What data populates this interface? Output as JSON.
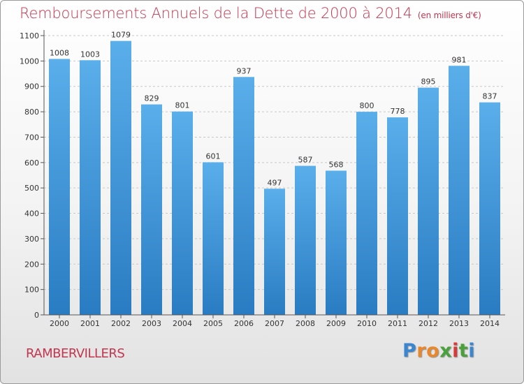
{
  "chart_data": {
    "type": "bar",
    "title": "Remboursements Annuels de la Dette de 2000 à 2014",
    "subtitle": "(en milliers d'€)",
    "categories": [
      "2000",
      "2001",
      "2002",
      "2003",
      "2004",
      "2005",
      "2006",
      "2007",
      "2008",
      "2009",
      "2010",
      "2011",
      "2012",
      "2013",
      "2014"
    ],
    "values": [
      1008,
      1003,
      1079,
      829,
      801,
      601,
      937,
      497,
      587,
      568,
      800,
      778,
      895,
      981,
      837
    ],
    "ylim": [
      0,
      1100
    ],
    "yticks": [
      0,
      100,
      200,
      300,
      400,
      500,
      600,
      700,
      800,
      900,
      1000,
      1100
    ],
    "xlabel": "",
    "ylabel": "",
    "grid": true,
    "bar_color": "#4a9fdf",
    "bar_color_dark": "#2a7cc2"
  },
  "footer": {
    "city": "RAMBERVILLERS",
    "logo_letters": [
      "P",
      "r",
      "o",
      "x",
      "i",
      "t",
      "i"
    ],
    "logo_colors": [
      "#3a86d0",
      "#e8872b",
      "#e8872b",
      "#4aa03a",
      "#d63a3a",
      "#4aa03a",
      "#3a86d0"
    ]
  }
}
